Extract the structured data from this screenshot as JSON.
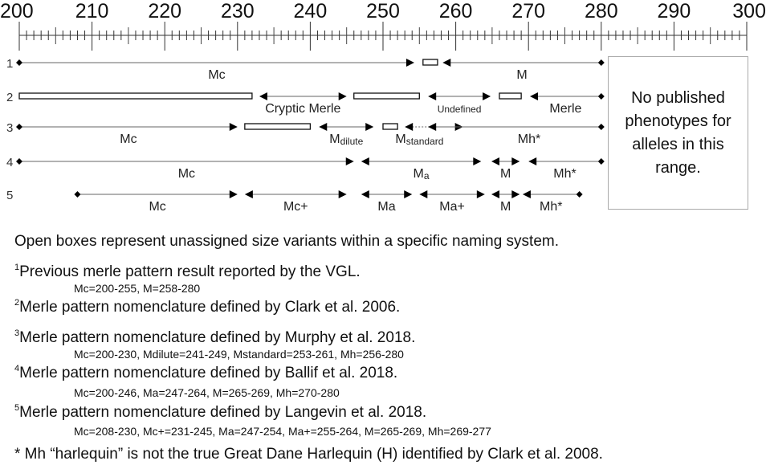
{
  "axis": {
    "min": 200,
    "max": 300,
    "major_step": 10,
    "minor_step": 1,
    "labels": [
      "200",
      "210",
      "220",
      "230",
      "240",
      "250",
      "260",
      "270",
      "280",
      "290",
      "300"
    ]
  },
  "rows": [
    {
      "number": "1",
      "segments": [
        {
          "start": 200,
          "end": 254.3,
          "type": "arrow",
          "left": "diamond",
          "right": "arrow",
          "label": "Mc"
        },
        {
          "start": 255.5,
          "end": 257.5,
          "type": "box"
        },
        {
          "start": 258.2,
          "end": 280,
          "type": "arrow",
          "left": "arrow",
          "right": "diamond",
          "label": "M"
        }
      ]
    },
    {
      "number": "2",
      "segments": [
        {
          "start": 200,
          "end": 232,
          "type": "box"
        },
        {
          "start": 233,
          "end": 245,
          "type": "arrow",
          "left": "arrow",
          "right": "arrow",
          "label": "Cryptic Merle"
        },
        {
          "start": 246,
          "end": 255,
          "type": "box"
        },
        {
          "start": 256.2,
          "end": 264.8,
          "type": "arrow",
          "left": "arrow",
          "right": "arrow",
          "label": "Undefined",
          "small": true
        },
        {
          "start": 266,
          "end": 269,
          "type": "box"
        },
        {
          "start": 270.2,
          "end": 280,
          "type": "arrow",
          "left": "arrow",
          "right": "diamond",
          "label": "Merle"
        }
      ]
    },
    {
      "number": "3",
      "segments": [
        {
          "start": 200,
          "end": 230,
          "type": "arrow",
          "left": "diamond",
          "right": "arrow",
          "label": "Mc"
        },
        {
          "start": 231,
          "end": 240,
          "type": "box"
        },
        {
          "start": 241.2,
          "end": 248.7,
          "type": "arrow",
          "left": "arrow",
          "right": "arrow",
          "label": "M",
          "label_sub": "dilute"
        },
        {
          "start": 250,
          "end": 252,
          "type": "box"
        },
        {
          "start": 253,
          "end": 261,
          "type": "arrow",
          "left": "arrow",
          "right": "arrow",
          "dotted": true,
          "label": "M",
          "label_sub": "standard",
          "label_offset": -2
        },
        {
          "start": 256.2,
          "end": 280,
          "type": "arrow",
          "left": "arrow",
          "right": "diamond",
          "label": "Mh*",
          "label_offset": 2,
          "label_up": true
        }
      ]
    },
    {
      "number": "4",
      "segments": [
        {
          "start": 200,
          "end": 246,
          "type": "arrow",
          "left": "diamond",
          "right": "arrow",
          "label": "Mc"
        },
        {
          "start": 247,
          "end": 263.5,
          "type": "arrow",
          "left": "arrow",
          "right": "arrow",
          "label": "M",
          "label_sub": "a"
        },
        {
          "start": 264.9,
          "end": 268.8,
          "type": "arrow",
          "left": "arrow",
          "right": "arrow",
          "label": "M"
        },
        {
          "start": 270,
          "end": 280,
          "type": "arrow",
          "left": "arrow",
          "right": "diamond",
          "label": "Mh*"
        }
      ]
    },
    {
      "number": "5",
      "segments": [
        {
          "start": 208,
          "end": 230,
          "type": "arrow",
          "left": "diamond",
          "right": "arrow",
          "label": "Mc"
        },
        {
          "start": 231,
          "end": 245,
          "type": "arrow",
          "left": "arrow",
          "right": "arrow",
          "label": "Mc+"
        },
        {
          "start": 247,
          "end": 254,
          "type": "arrow",
          "left": "arrow",
          "right": "arrow",
          "label": "Ma"
        },
        {
          "start": 255,
          "end": 264,
          "type": "arrow",
          "left": "arrow",
          "right": "arrow",
          "label": "Ma+"
        },
        {
          "start": 264.9,
          "end": 268.8,
          "type": "arrow",
          "left": "arrow",
          "right": "arrow",
          "label": "M"
        },
        {
          "start": 269.2,
          "end": 277,
          "type": "arrow",
          "left": "arrow",
          "right": "diamond",
          "label": "Mh*"
        }
      ]
    }
  ],
  "no_data_box": {
    "lines": [
      "No published",
      "phenotypes for",
      "alleles in this",
      "range."
    ]
  },
  "notes": {
    "open_boxes": "Open boxes represent unassigned size variants within a specific naming system.",
    "items": [
      {
        "num": "1",
        "text": "Previous merle pattern result reported by the VGL.",
        "ranges": "Mc=200-255, M=258-280"
      },
      {
        "num": "2",
        "text": "Merle pattern nomenclature defined by Clark et al. 2006.",
        "ranges": ""
      },
      {
        "num": "3",
        "text": "Merle pattern nomenclature defined by Murphy et al. 2018.",
        "ranges": "Mc=200-230, Mdilute=241-249, Mstandard=253-261, Mh=256-280"
      },
      {
        "num": "4",
        "text": "Merle pattern nomenclature defined by Ballif et al. 2018.",
        "ranges": "Mc=200-246, Ma=247-264, M=265-269, Mh=270-280"
      },
      {
        "num": "5",
        "text": "Merle pattern nomenclature defined by Langevin et al. 2018.",
        "ranges": "Mc=208-230, Mc+=231-245, Ma=247-254, Ma+=255-264, M=265-269, Mh=269-277"
      }
    ],
    "footnote": "* Mh “harlequin” is not the true Great Dane Harlequin (H) identified by Clark et al. 2008."
  }
}
